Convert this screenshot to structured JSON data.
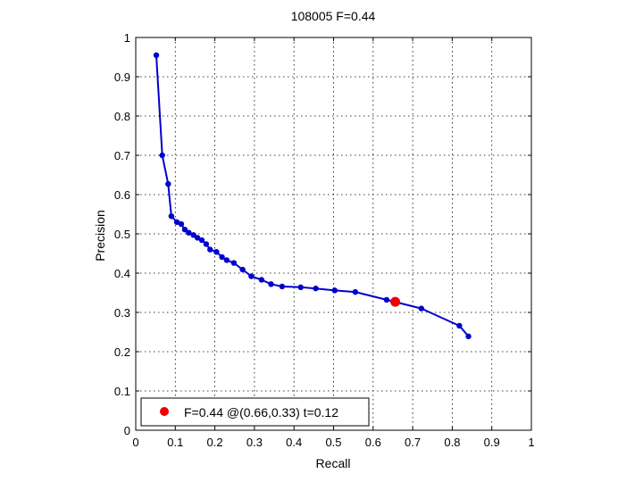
{
  "chart_data": {
    "type": "line",
    "title": "108005 F=0.44",
    "xlabel": "Recall",
    "ylabel": "Precision",
    "xlim": [
      0,
      1
    ],
    "ylim": [
      0,
      1
    ],
    "xticks": [
      "0",
      "0.1",
      "0.2",
      "0.3",
      "0.4",
      "0.5",
      "0.6",
      "0.7",
      "0.8",
      "0.9",
      "1"
    ],
    "yticks": [
      "0",
      "0.1",
      "0.2",
      "0.3",
      "0.4",
      "0.5",
      "0.6",
      "0.7",
      "0.8",
      "0.9",
      "1"
    ],
    "grid": true,
    "legend_position": "bottom-left",
    "colors": {
      "series": "#0000cc",
      "best_point": "#ee0000"
    },
    "series": [
      {
        "x": [
          0.052,
          0.067,
          0.082,
          0.09,
          0.104,
          0.115,
          0.124,
          0.134,
          0.146,
          0.156,
          0.167,
          0.178,
          0.188,
          0.204,
          0.218,
          0.23,
          0.248,
          0.27,
          0.292,
          0.318,
          0.342,
          0.37,
          0.417,
          0.455,
          0.503,
          0.555,
          0.634,
          0.722,
          0.818,
          0.841
        ],
        "y": [
          0.955,
          0.7,
          0.627,
          0.545,
          0.53,
          0.525,
          0.511,
          0.503,
          0.497,
          0.49,
          0.484,
          0.474,
          0.46,
          0.454,
          0.441,
          0.433,
          0.426,
          0.409,
          0.392,
          0.383,
          0.372,
          0.366,
          0.364,
          0.361,
          0.356,
          0.352,
          0.332,
          0.31,
          0.266,
          0.239
        ]
      }
    ],
    "best_point": {
      "x": 0.656,
      "y": 0.327
    },
    "legend_label": "F=0.44 @(0.66,0.33) t=0.12"
  }
}
